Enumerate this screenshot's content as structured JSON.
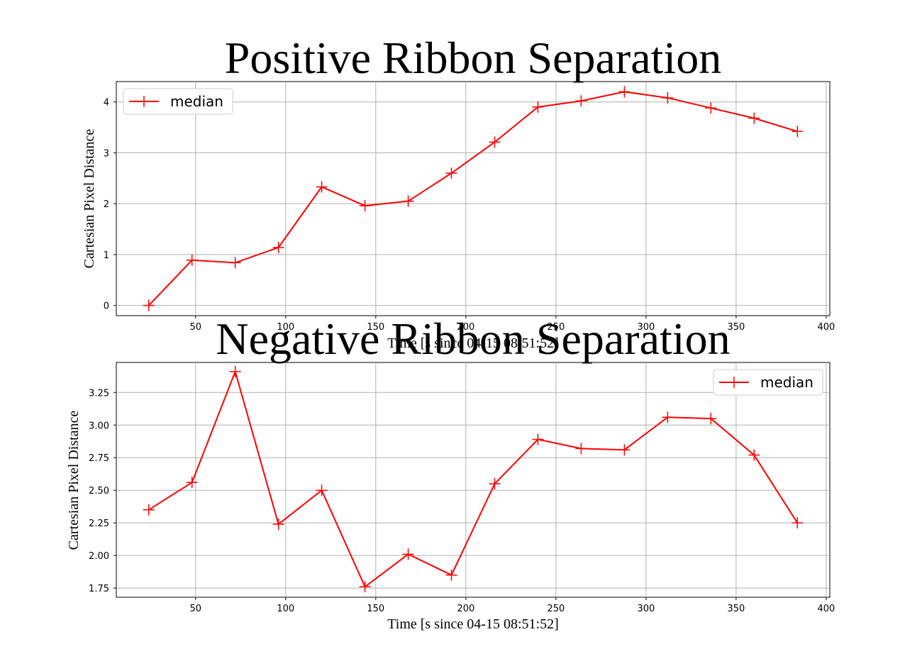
{
  "chart_data": [
    {
      "type": "line",
      "title": "Positive Ribbon Separation",
      "xlabel": "Time [s since 04-15 08:51:52]",
      "ylabel": "Cartesian Pixel Distance",
      "xlim": [
        6,
        402
      ],
      "ylim": [
        -0.2,
        4.4
      ],
      "xticks": [
        50,
        100,
        150,
        200,
        250,
        300,
        350,
        400
      ],
      "yticks": [
        0,
        1,
        2,
        3,
        4
      ],
      "ytick_labels": [
        "0",
        "1",
        "2",
        "3",
        "4"
      ],
      "grid": true,
      "legend_position": "upper left",
      "color": "#ff0000",
      "marker": "+",
      "series": [
        {
          "name": "median",
          "x": [
            24,
            48,
            72,
            96,
            120,
            144,
            168,
            192,
            216,
            240,
            264,
            288,
            312,
            336,
            360,
            384
          ],
          "y": [
            0.0,
            0.89,
            0.84,
            1.14,
            2.33,
            1.96,
            2.05,
            2.6,
            3.21,
            3.9,
            4.02,
            4.2,
            4.08,
            3.88,
            3.68,
            3.42
          ]
        }
      ]
    },
    {
      "type": "line",
      "title": "Negative Ribbon Separation",
      "xlabel": "Time [s since 04-15 08:51:52]",
      "ylabel": "Cartesian Pixel Distance",
      "xlim": [
        6,
        402
      ],
      "ylim": [
        1.68,
        3.48
      ],
      "xticks": [
        50,
        100,
        150,
        200,
        250,
        300,
        350,
        400
      ],
      "yticks": [
        1.75,
        2.0,
        2.25,
        2.5,
        2.75,
        3.0,
        3.25
      ],
      "ytick_labels": [
        "1.75",
        "2.00",
        "2.25",
        "2.50",
        "2.75",
        "3.00",
        "3.25"
      ],
      "grid": true,
      "legend_position": "upper right",
      "color": "#ff0000",
      "marker": "+",
      "series": [
        {
          "name": "median",
          "x": [
            24,
            48,
            72,
            96,
            120,
            144,
            168,
            192,
            216,
            240,
            264,
            288,
            312,
            336,
            360,
            384
          ],
          "y": [
            2.35,
            2.56,
            3.41,
            2.24,
            2.5,
            1.76,
            2.01,
            1.85,
            2.55,
            2.89,
            2.82,
            2.81,
            3.06,
            3.05,
            2.77,
            2.25
          ]
        }
      ]
    }
  ]
}
